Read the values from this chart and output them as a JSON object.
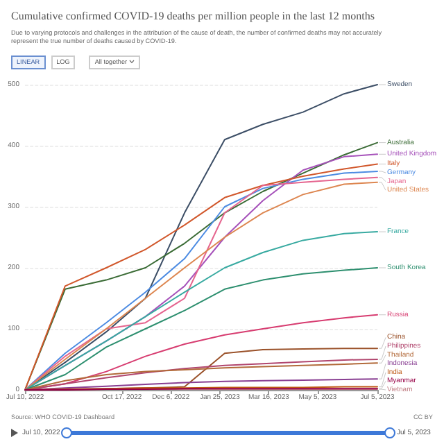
{
  "chart_data": {
    "type": "line",
    "title": "Cumulative confirmed COVID-19 deaths per million people in the last 12 months",
    "subtitle": "Due to varying protocols and challenges in the attribution of the cause of death, the number of confirmed deaths may not accurately represent the true number of deaths caused by COVID-19.",
    "x": [
      "2022-07-10",
      "2022-08-20",
      "2022-10-01",
      "2022-11-10",
      "2022-12-20",
      "2023-01-30",
      "2023-03-10",
      "2023-04-20",
      "2023-06-01",
      "2023-07-05"
    ],
    "series": [
      {
        "name": "Sweden",
        "color": "#3c4e66",
        "values": [
          0,
          45,
          95,
          150,
          290,
          410,
          435,
          455,
          485,
          500
        ]
      },
      {
        "name": "Australia",
        "color": "#3a6b35",
        "values": [
          0,
          165,
          180,
          200,
          240,
          290,
          325,
          355,
          385,
          405
        ]
      },
      {
        "name": "United Kingdom",
        "color": "#a652ba",
        "values": [
          0,
          40,
          80,
          120,
          170,
          250,
          310,
          360,
          382,
          386
        ]
      },
      {
        "name": "Italy",
        "color": "#d1572b",
        "values": [
          0,
          170,
          200,
          230,
          270,
          315,
          335,
          350,
          362,
          370
        ]
      },
      {
        "name": "Germany",
        "color": "#4c8be2",
        "values": [
          0,
          60,
          110,
          160,
          215,
          300,
          330,
          345,
          355,
          358
        ]
      },
      {
        "name": "Japan",
        "color": "#e5658f",
        "values": [
          0,
          55,
          100,
          110,
          150,
          290,
          335,
          340,
          345,
          348
        ]
      },
      {
        "name": "United States",
        "color": "#dd8650",
        "values": [
          0,
          50,
          100,
          150,
          200,
          250,
          290,
          320,
          337,
          340
        ]
      },
      {
        "name": "France",
        "color": "#38aaa1",
        "values": [
          0,
          40,
          80,
          120,
          160,
          200,
          225,
          245,
          256,
          259
        ]
      },
      {
        "name": "South Korea",
        "color": "#2d8f6f",
        "values": [
          0,
          25,
          70,
          100,
          130,
          165,
          180,
          190,
          196,
          200
        ]
      },
      {
        "name": "Russia",
        "color": "#d73c70",
        "values": [
          0,
          10,
          30,
          55,
          75,
          90,
          100,
          110,
          118,
          123
        ]
      },
      {
        "name": "China",
        "color": "#9a5129",
        "values": [
          0,
          1,
          2,
          3,
          5,
          60,
          66,
          67,
          68,
          68
        ]
      },
      {
        "name": "Philippines",
        "color": "#b1466e",
        "values": [
          0,
          10,
          20,
          28,
          35,
          40,
          43,
          46,
          49,
          50
        ]
      },
      {
        "name": "Thailand",
        "color": "#b26a3a",
        "values": [
          0,
          15,
          25,
          30,
          33,
          36,
          38,
          40,
          42,
          44
        ]
      },
      {
        "name": "Indonesia",
        "color": "#883e92",
        "values": [
          0,
          3,
          6,
          9,
          12,
          14,
          15,
          16,
          17,
          18
        ]
      },
      {
        "name": "India",
        "color": "#be5914",
        "values": [
          0,
          1,
          2,
          3,
          3,
          4,
          4,
          4,
          5,
          5
        ]
      },
      {
        "name": "Vietnam",
        "color": "#c07c83",
        "values": [
          0,
          0,
          1,
          1,
          1,
          1,
          1,
          1,
          1,
          1
        ]
      },
      {
        "name": "Myanmar",
        "color": "#970046",
        "values": [
          0,
          0,
          1,
          1,
          2,
          2,
          2,
          2,
          2,
          2
        ]
      }
    ],
    "xlim": [
      "2022-07-10",
      "2023-07-05"
    ],
    "xticks": [
      {
        "value": "2022-07-10",
        "label": "Jul 10, 2022"
      },
      {
        "value": "2022-10-17",
        "label": "Oct 17, 2022"
      },
      {
        "value": "2022-12-06",
        "label": "Dec 6, 2022"
      },
      {
        "value": "2023-01-25",
        "label": "Jan 25, 2023"
      },
      {
        "value": "2023-03-16",
        "label": "Mar 16, 2023"
      },
      {
        "value": "2023-05-05",
        "label": "May 5, 2023"
      },
      {
        "value": "2023-07-05",
        "label": "Jul 5, 2023"
      }
    ],
    "ylim": [
      0,
      500
    ],
    "yticks": [
      0,
      100,
      200,
      300,
      400,
      500
    ],
    "grid": "y",
    "legend": false,
    "marker": "none",
    "line_style": "solid",
    "annotations": [
      "Source: WHO COVID-19 Dashboard",
      "CC BY",
      "LINEAR",
      "LOG",
      "All together",
      "Jul 10, 2022",
      "Jul 5, 2023"
    ]
  }
}
